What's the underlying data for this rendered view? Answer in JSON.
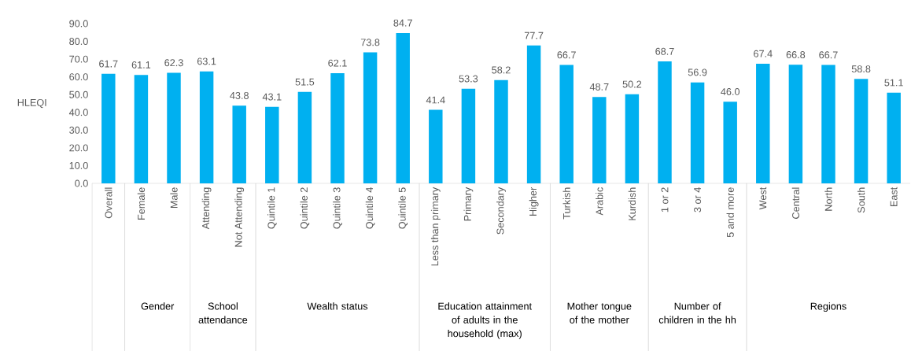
{
  "chart_data": {
    "type": "bar",
    "ylabel": "HLEQI",
    "categories": [
      "Overall",
      "Female",
      "Male",
      "Attending",
      "Not Attending",
      "Quintile 1",
      "Quintile 2",
      "Quintile 3",
      "Quintile 4",
      "Quintile 5",
      "Less than primary",
      "Primary",
      "Secondary",
      "Higher",
      "Turkish",
      "Arabic",
      "Kurdish",
      "1 or 2",
      "3 or 4",
      "5 and more",
      "West",
      "Central",
      "North",
      "South",
      "East"
    ],
    "values": [
      61.7,
      61.1,
      62.3,
      63.1,
      43.8,
      43.1,
      51.5,
      62.1,
      73.8,
      84.7,
      41.4,
      53.3,
      58.2,
      77.7,
      66.7,
      48.7,
      50.2,
      68.7,
      56.9,
      46.0,
      67.4,
      66.8,
      66.7,
      58.8,
      51.1
    ],
    "value_labels": [
      "61.7",
      "61.1",
      "62.3",
      "63.1",
      "43.8",
      "43.1",
      "51.5",
      "62.1",
      "73.8",
      "84.7",
      "41.4",
      "53.3",
      "58.2",
      "77.7",
      "66.7",
      "48.7",
      "50.2",
      "68.7",
      "56.9",
      "46.0",
      "67.4",
      "66.8",
      "66.7",
      "58.8",
      "51.1"
    ],
    "color": "#00b0f0",
    "ylim": [
      0,
      90
    ],
    "yticks": [
      {
        "value": 0,
        "label": "0.0"
      },
      {
        "value": 10,
        "label": "10.0"
      },
      {
        "value": 20,
        "label": "20.0"
      },
      {
        "value": 30,
        "label": "30.0"
      },
      {
        "value": 40,
        "label": "40.0"
      },
      {
        "value": 50,
        "label": "50.0"
      },
      {
        "value": 60,
        "label": "60.0"
      },
      {
        "value": 70,
        "label": "70.0"
      },
      {
        "value": 80,
        "label": "80.0"
      },
      {
        "value": 90,
        "label": "90.0"
      }
    ],
    "annotations": [
      "Gender",
      "School attendance",
      "Wealth status",
      "Education attainment of adults in the household (max)",
      "Mother tongue of the mother",
      "Number of children in the hh",
      "Regions"
    ]
  }
}
